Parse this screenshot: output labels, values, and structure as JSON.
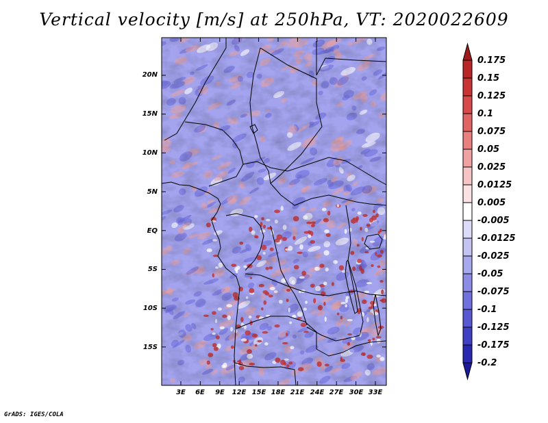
{
  "title": "Vertical velocity [m/s] at 250hPa, VT: 2020022609",
  "credit": "GrADS: IGES/COLA",
  "latitude_labels": [
    "20N",
    "15N",
    "10N",
    "5N",
    "EQ",
    "5S",
    "10S",
    "15S"
  ],
  "longitude_labels": [
    "3E",
    "6E",
    "9E",
    "12E",
    "15E",
    "18E",
    "21E",
    "24E",
    "27E",
    "30E",
    "33E"
  ],
  "colorbar": {
    "labels": [
      "0.175",
      "0.15",
      "0.125",
      "0.1",
      "0.075",
      "0.05",
      "0.025",
      "0.0125",
      "0.005",
      "-0.005",
      "-0.0125",
      "-0.025",
      "-0.05",
      "-0.075",
      "-0.1",
      "-0.125",
      "-0.175",
      "-0.2"
    ],
    "colors": [
      "#9e1b1b",
      "#b82626",
      "#c83434",
      "#d84a4a",
      "#e06464",
      "#e88080",
      "#f0a2a2",
      "#f6c4c4",
      "#fbe2e2",
      "#ffffff",
      "#dcdcf8",
      "#c4c4f4",
      "#a8a8ee",
      "#8c8ce6",
      "#7070de",
      "#5858d2",
      "#4040c4",
      "#2828b0",
      "#1a1a98"
    ]
  },
  "map": {
    "background_color": "#a3a3ee",
    "upward_color": "#e8a0a0",
    "strong_upward_color": "#c03030",
    "downward_color": "#6c6cdc",
    "border_color": "#000000"
  }
}
